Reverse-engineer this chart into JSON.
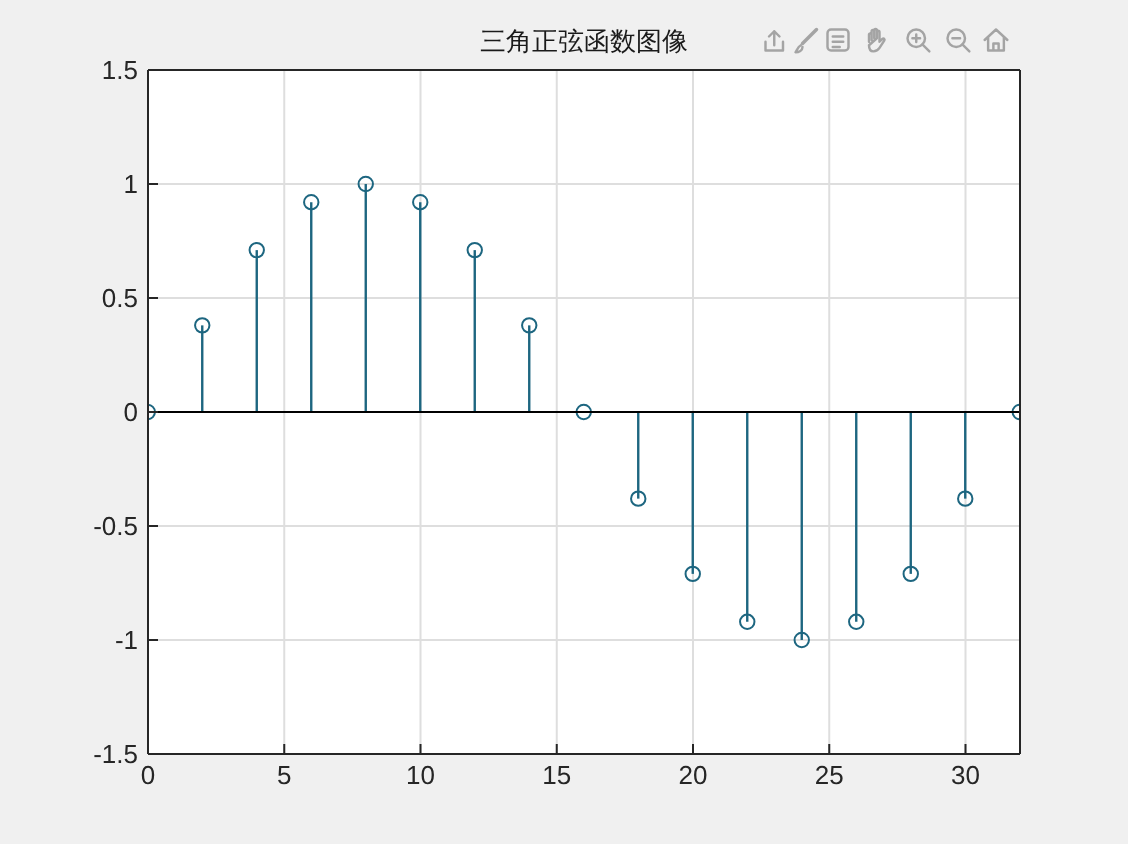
{
  "chart_data": {
    "type": "lollipop",
    "title": "三角正弦函数图像",
    "x": [
      0,
      2,
      4,
      6,
      8,
      10,
      12,
      14,
      16,
      18,
      20,
      22,
      24,
      26,
      28,
      30,
      32
    ],
    "values": [
      0,
      0.38,
      0.71,
      0.92,
      1,
      0.92,
      0.71,
      0.38,
      0,
      -0.38,
      -0.71,
      -0.92,
      -1,
      -0.92,
      -0.71,
      -0.38,
      0
    ],
    "color": "#1d6680",
    "marker": "circle",
    "xlim": [
      0,
      32
    ],
    "xticks": [
      0,
      5,
      10,
      15,
      20,
      25,
      30
    ],
    "ylim": [
      -1.5,
      1.5
    ],
    "yticks": [
      -1.5,
      -1,
      -0.5,
      0,
      0.5,
      1,
      1.5
    ],
    "grid": true,
    "ref_lines": [
      {
        "axis": "y",
        "value": 0,
        "color": "#000000"
      }
    ]
  }
}
